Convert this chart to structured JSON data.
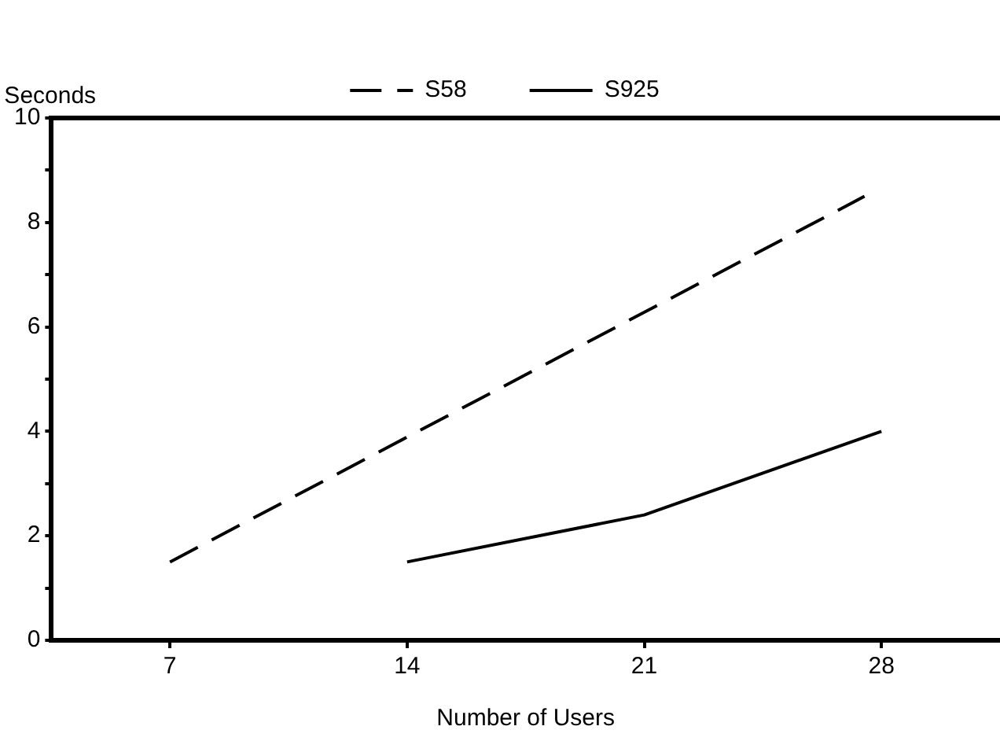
{
  "chart_data": {
    "type": "line",
    "xlabel": "Number of Users",
    "ylabel": "Seconds",
    "xlim": [
      3.5,
      31.5
    ],
    "xticks": [
      7,
      14,
      21,
      28
    ],
    "ylim": [
      0,
      10
    ],
    "yticks": [
      0,
      {
        "value": 1,
        "label": null
      },
      2,
      {
        "value": 3,
        "label": null
      },
      4,
      {
        "value": 5,
        "label": null
      },
      6,
      {
        "value": 7,
        "label": null
      },
      8,
      {
        "value": 9,
        "label": null
      },
      10
    ],
    "grid": false,
    "legend": "top",
    "marker": "none",
    "series": [
      {
        "name": "S58",
        "color": "#000000",
        "line_style": "dashed",
        "x": [
          7,
          27.5
        ],
        "values": [
          1.5,
          8.5
        ]
      },
      {
        "name": "S925",
        "color": "#000000",
        "line_style": "solid",
        "x": [
          14,
          21,
          28
        ],
        "values": [
          1.5,
          2.4,
          4
        ]
      }
    ]
  }
}
